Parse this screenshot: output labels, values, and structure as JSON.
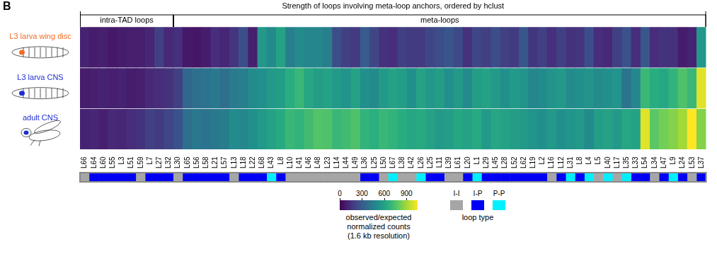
{
  "chart_data": {
    "type": "heatmap",
    "panel": "B",
    "title": "Strength of loops involving meta-loop anchors, ordered by hclust",
    "groups": [
      {
        "label": "intra-TAD loops",
        "from": 0,
        "to": 9
      },
      {
        "label": "meta-loops",
        "from": 10,
        "to": 66
      }
    ],
    "categories": [
      "L66",
      "L64",
      "L60",
      "L55",
      "L3",
      "L51",
      "L59",
      "L7",
      "L27",
      "L32",
      "L30",
      "L65",
      "L56",
      "L58",
      "L21",
      "L57",
      "L13",
      "L18",
      "L22",
      "L68",
      "L43",
      "L8",
      "L10",
      "L41",
      "L46",
      "L48",
      "L23",
      "L14",
      "L44",
      "L49",
      "L36",
      "L25",
      "L50",
      "L67",
      "L38",
      "L42",
      "L26",
      "L25",
      "L11",
      "L39",
      "L61",
      "L20",
      "L1",
      "L29",
      "L45",
      "L28",
      "L52",
      "L62",
      "L19",
      "L2",
      "L16",
      "L12",
      "L31",
      "L8",
      "L4",
      "L5",
      "L40",
      "L17",
      "L35",
      "L33",
      "L54",
      "L34",
      "L47",
      "L9",
      "L24",
      "L53",
      "L37"
    ],
    "rows": [
      {
        "name": "L3 larva wing disc",
        "color": "#f26b21",
        "values": [
          100,
          80,
          90,
          70,
          80,
          90,
          90,
          110,
          200,
          120,
          140,
          70,
          60,
          80,
          130,
          110,
          160,
          250,
          90,
          550,
          500,
          600,
          450,
          500,
          480,
          480,
          450,
          250,
          200,
          180,
          300,
          220,
          150,
          130,
          200,
          180,
          180,
          220,
          250,
          280,
          230,
          150,
          220,
          200,
          250,
          200,
          180,
          280,
          160,
          200,
          140,
          200,
          150,
          160,
          250,
          130,
          120,
          200,
          260,
          130,
          280,
          130,
          150,
          150,
          80,
          100,
          550
        ]
      },
      {
        "name": "L3 larva CNS",
        "color": "#1f2fd0",
        "values": [
          80,
          90,
          100,
          90,
          100,
          80,
          90,
          120,
          130,
          150,
          200,
          350,
          380,
          400,
          420,
          380,
          430,
          450,
          500,
          520,
          560,
          580,
          650,
          700,
          620,
          580,
          600,
          560,
          540,
          600,
          520,
          500,
          560,
          600,
          580,
          520,
          600,
          550,
          580,
          520,
          560,
          500,
          580,
          600,
          560,
          520,
          560,
          540,
          480,
          500,
          540,
          560,
          500,
          520,
          540,
          500,
          520,
          540,
          400,
          480,
          700,
          650,
          620,
          680,
          750,
          700,
          1000
        ]
      },
      {
        "name": "adult CNS",
        "color": "#1f2fd0",
        "values": [
          100,
          110,
          90,
          120,
          110,
          130,
          150,
          200,
          180,
          220,
          260,
          380,
          420,
          400,
          420,
          440,
          500,
          480,
          520,
          560,
          600,
          640,
          700,
          680,
          720,
          760,
          750,
          700,
          720,
          750,
          680,
          660,
          700,
          680,
          650,
          620,
          640,
          600,
          560,
          580,
          620,
          600,
          640,
          560,
          620,
          600,
          580,
          560,
          540,
          520,
          560,
          520,
          540,
          560,
          500,
          580,
          600,
          560,
          620,
          600,
          1000,
          780,
          820,
          850,
          900,
          1050,
          850
        ]
      }
    ],
    "colorbar": {
      "range": [
        0,
        1050
      ],
      "ticks": [
        0,
        300,
        600,
        900
      ],
      "label": [
        "observed/expected",
        "normalized counts",
        "(1.6 kb resolution)"
      ]
    },
    "loop_type": {
      "title": "loop type",
      "classes": [
        {
          "label": "I-I",
          "color": "#a6a6a6"
        },
        {
          "label": "I-P",
          "color": "#0000f5"
        },
        {
          "label": "P-P",
          "color": "#00f0ff"
        }
      ],
      "values": [
        "I-I",
        "I-P",
        "I-P",
        "I-P",
        "I-P",
        "I-P",
        "I-I",
        "I-P",
        "I-P",
        "I-P",
        "I-I",
        "I-P",
        "I-P",
        "I-P",
        "I-P",
        "I-P",
        "I-I",
        "I-P",
        "I-P",
        "I-P",
        "P-P",
        "I-P",
        "I-I",
        "I-I",
        "I-I",
        "I-I",
        "I-I",
        "I-I",
        "I-I",
        "I-I",
        "I-P",
        "I-P",
        "I-I",
        "P-P",
        "I-I",
        "I-I",
        "P-P",
        "I-P",
        "I-P",
        "I-I",
        "I-I",
        "I-P",
        "P-P",
        "I-P",
        "I-P",
        "I-P",
        "I-P",
        "I-P",
        "I-P",
        "I-P",
        "I-I",
        "I-P",
        "P-P",
        "I-P",
        "P-P",
        "I-I",
        "P-P",
        "I-I",
        "P-P",
        "I-P",
        "I-P",
        "I-I",
        "I-P",
        "P-P",
        "I-P",
        "I-I",
        "I-P"
      ]
    }
  }
}
